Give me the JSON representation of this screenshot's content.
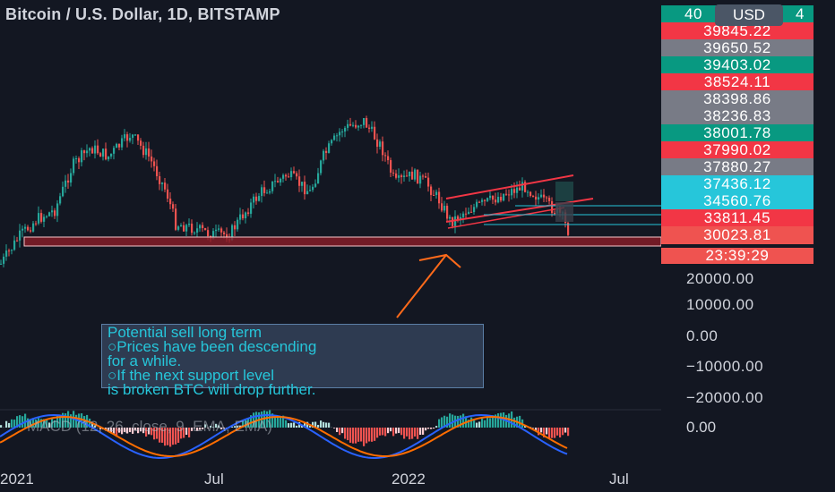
{
  "header": {
    "title": "Bitcoin / U.S. Dollar, 1D, BITSTAMP"
  },
  "currency_button": "USD",
  "price_labels": [
    {
      "text": "40",
      "color": "#089981"
    },
    {
      "text": "39845.22",
      "color": "#f23645"
    },
    {
      "text": "39650.52",
      "color": "#787b86"
    },
    {
      "text": "39403.02",
      "color": "#089981"
    },
    {
      "text": "38524.11",
      "color": "#f23645"
    },
    {
      "text": "38398.86",
      "color": "#787b86"
    },
    {
      "text": "38236.83",
      "color": "#787b86"
    },
    {
      "text": "38001.78",
      "color": "#089981"
    },
    {
      "text": "37990.02",
      "color": "#f23645"
    },
    {
      "text": "37880.27",
      "color": "#787b86"
    },
    {
      "text": "37436.12",
      "color": "#26c6da"
    },
    {
      "text": "34560.76",
      "color": "#26c6da"
    },
    {
      "text": "33811.45",
      "color": "#f23645"
    },
    {
      "text": "30023.81",
      "color": "#ef5350"
    }
  ],
  "price_label_tail": "4",
  "countdown": "23:39:29",
  "axis_ticks": [
    "20000.00",
    "10000.00",
    "0.00",
    "−10000.00",
    "−20000.00"
  ],
  "macd": {
    "label": "MACD (12, 26, close, 9, EMA, EMA)",
    "zero": "0.00"
  },
  "x_axis": [
    "2021",
    "Jul",
    "2022",
    "Jul"
  ],
  "annotation": {
    "lines": [
      "Potential sell long term",
      "○Prices have been descending",
      "for a while.",
      "○If the next support level",
      "is broken BTC will drop further."
    ]
  },
  "colors": {
    "bg": "#131722",
    "up": "#26a69a",
    "down": "#ef5350",
    "support": "#b22833",
    "channel": "#f23645",
    "annotation": "#26c6da",
    "arrow": "#ff6a1a"
  }
}
